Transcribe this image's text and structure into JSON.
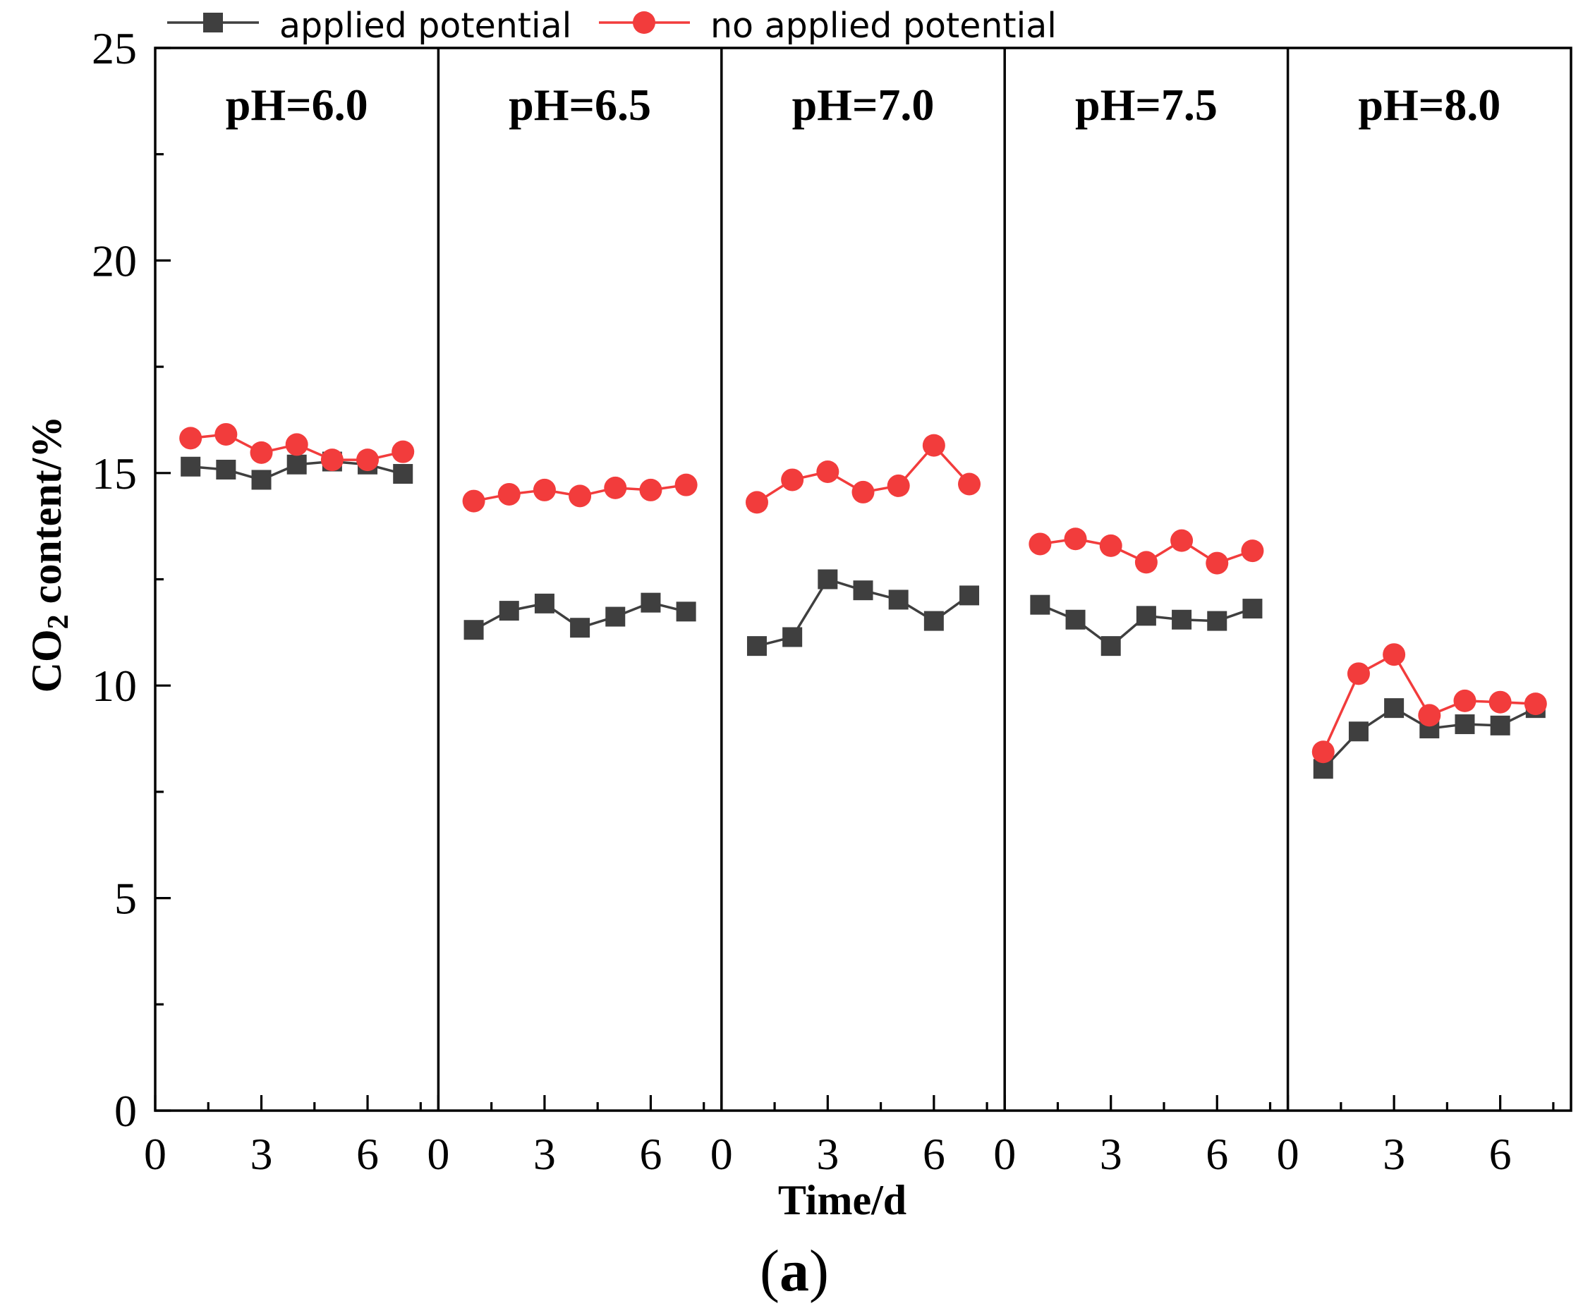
{
  "chart_data": {
    "type": "line",
    "series": [
      {
        "name": "applied potential",
        "marker": "square",
        "color": "#3f3f3f"
      },
      {
        "name": "no applied potential",
        "marker": "circle",
        "color": "#f23c3c"
      }
    ],
    "xlabel": "Time/d",
    "ylabel": {
      "main": "CO",
      "sub": "2",
      "rest": " content/%"
    },
    "xlim": [
      0,
      8
    ],
    "xticks": [
      0,
      3,
      6
    ],
    "xminor_step": 1.5,
    "ylim": [
      0,
      25
    ],
    "yticks": [
      0,
      5,
      10,
      15,
      20,
      25
    ],
    "yminor_step": 2.5,
    "grid": false,
    "x": [
      1,
      2,
      3,
      4,
      5,
      6,
      7
    ],
    "panels": [
      {
        "title": "pH=6.0",
        "values": [
          [
            15.15,
            15.08,
            14.84,
            15.2,
            15.27,
            15.2,
            14.98
          ],
          [
            15.82,
            15.91,
            15.48,
            15.67,
            15.31,
            15.31,
            15.5
          ]
        ]
      },
      {
        "title": "pH=6.5",
        "values": [
          [
            11.31,
            11.76,
            11.93,
            11.36,
            11.62,
            11.95,
            11.74
          ],
          [
            14.34,
            14.5,
            14.6,
            14.46,
            14.65,
            14.6,
            14.72
          ]
        ]
      },
      {
        "title": "pH=7.0",
        "values": [
          [
            10.93,
            11.14,
            12.5,
            12.24,
            12.02,
            11.52,
            12.12
          ],
          [
            14.31,
            14.84,
            15.03,
            14.55,
            14.7,
            15.65,
            14.74
          ]
        ]
      },
      {
        "title": "pH=7.5",
        "values": [
          [
            11.9,
            11.55,
            10.93,
            11.64,
            11.55,
            11.52,
            11.81
          ],
          [
            13.33,
            13.45,
            13.29,
            12.9,
            13.41,
            12.88,
            13.17
          ]
        ]
      },
      {
        "title": "pH=8.0",
        "values": [
          [
            8.04,
            8.92,
            9.47,
            8.99,
            9.09,
            9.06,
            9.47
          ],
          [
            8.44,
            10.28,
            10.73,
            9.3,
            9.64,
            9.61,
            9.57
          ]
        ]
      }
    ]
  },
  "caption": {
    "open": "(",
    "letter": "a",
    "close": ")"
  }
}
